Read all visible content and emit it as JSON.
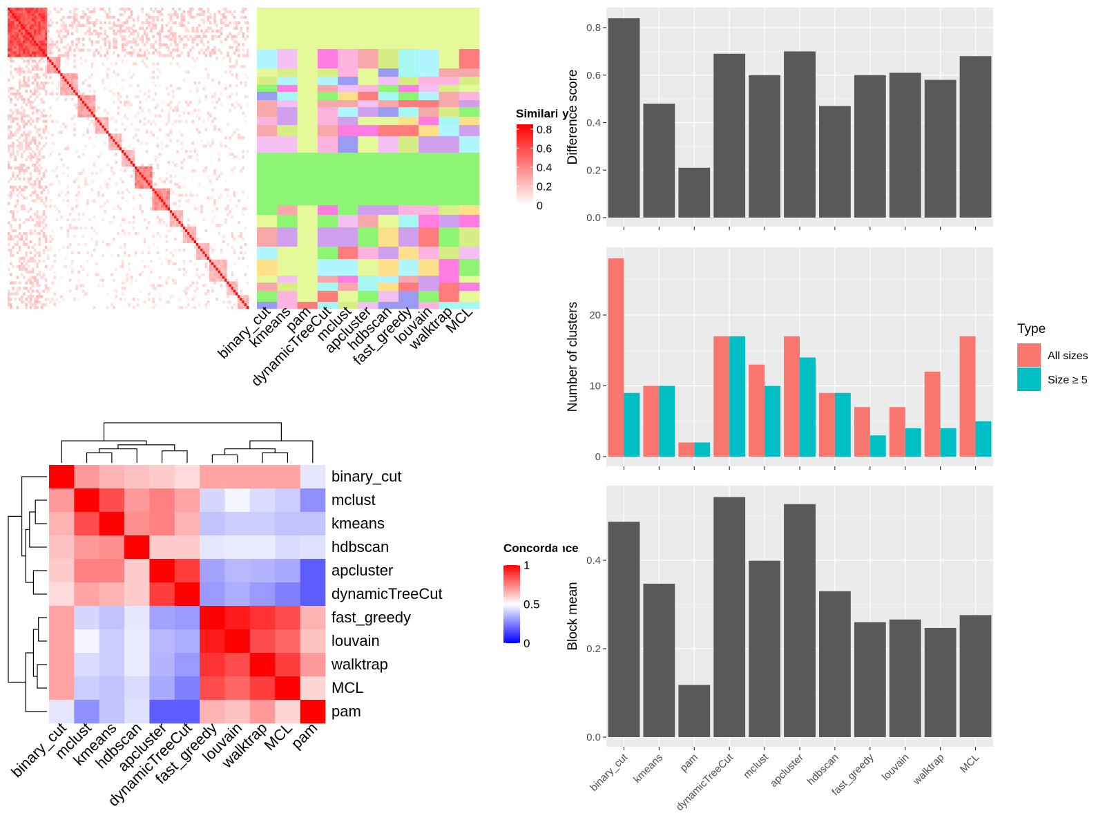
{
  "methods_order_bar": [
    "binary_cut",
    "kmeans",
    "pam",
    "dynamicTreeCut",
    "mclust",
    "apcluster",
    "hdbscan",
    "fast_greedy",
    "louvain",
    "walktrap",
    "MCL"
  ],
  "similarity_heatmap": {
    "legend_title": "Similarity",
    "legend_ticks": [
      "0.8",
      "0.6",
      "0.4",
      "0.2",
      "0"
    ],
    "column_labels": [
      "binary_cut",
      "kmeans",
      "pam",
      "dynamicTreeCut",
      "mclust",
      "apcluster",
      "hdbscan",
      "fast_greedy",
      "louvain",
      "walktrap",
      "MCL"
    ]
  },
  "concordance_heatmap": {
    "legend_title": "Concordance",
    "legend_ticks": [
      "1",
      "0.5",
      "0"
    ],
    "methods": [
      "binary_cut",
      "mclust",
      "kmeans",
      "hdbscan",
      "apcluster",
      "dynamicTreeCut",
      "fast_greedy",
      "louvain",
      "walktrap",
      "MCL",
      "pam"
    ]
  },
  "legend": {
    "title": "Type",
    "items": [
      {
        "label": "All sizes",
        "color": "#F8766D"
      },
      {
        "label": "Size ≥ 5",
        "color": "#00BFC4"
      }
    ]
  },
  "chart_data": [
    {
      "type": "heatmap",
      "title": "",
      "rows": [
        "binary_cut",
        "mclust",
        "kmeans",
        "hdbscan",
        "apcluster",
        "dynamicTreeCut",
        "fast_greedy",
        "louvain",
        "walktrap",
        "MCL",
        "pam"
      ],
      "columns": [
        "binary_cut",
        "mclust",
        "kmeans",
        "hdbscan",
        "apcluster",
        "dynamicTreeCut",
        "fast_greedy",
        "louvain",
        "walktrap",
        "MCL",
        "pam"
      ],
      "values": [
        [
          1.0,
          0.7,
          0.65,
          0.62,
          0.6,
          0.57,
          0.68,
          0.68,
          0.68,
          0.68,
          0.45
        ],
        [
          0.7,
          1.0,
          0.85,
          0.7,
          0.75,
          0.68,
          0.42,
          0.48,
          0.43,
          0.4,
          0.28
        ],
        [
          0.65,
          0.85,
          1.0,
          0.72,
          0.75,
          0.65,
          0.38,
          0.4,
          0.4,
          0.38,
          0.38
        ],
        [
          0.62,
          0.7,
          0.72,
          1.0,
          0.6,
          0.6,
          0.45,
          0.46,
          0.46,
          0.43,
          0.44
        ],
        [
          0.6,
          0.75,
          0.75,
          0.6,
          1.0,
          0.88,
          0.32,
          0.36,
          0.35,
          0.33,
          0.18
        ],
        [
          0.57,
          0.68,
          0.65,
          0.6,
          0.88,
          1.0,
          0.3,
          0.34,
          0.3,
          0.25,
          0.18
        ],
        [
          0.68,
          0.42,
          0.38,
          0.45,
          0.32,
          0.3,
          1.0,
          0.95,
          0.9,
          0.85,
          0.65
        ],
        [
          0.68,
          0.48,
          0.4,
          0.46,
          0.36,
          0.34,
          0.95,
          1.0,
          0.85,
          0.8,
          0.62
        ],
        [
          0.68,
          0.43,
          0.4,
          0.46,
          0.35,
          0.3,
          0.9,
          0.85,
          1.0,
          0.88,
          0.7
        ],
        [
          0.68,
          0.4,
          0.38,
          0.43,
          0.33,
          0.25,
          0.85,
          0.8,
          0.88,
          1.0,
          0.58
        ],
        [
          0.45,
          0.28,
          0.38,
          0.44,
          0.18,
          0.18,
          0.65,
          0.62,
          0.7,
          0.58,
          1.0
        ]
      ],
      "legend_title": "Concordance",
      "color_scale": {
        "low": "#0000FF",
        "mid": "#FFFFFF",
        "high": "#FF0000",
        "range": [
          0,
          1
        ]
      }
    },
    {
      "type": "bar",
      "title": "",
      "xlabel": "",
      "ylabel": "Difference score",
      "categories": [
        "binary_cut",
        "kmeans",
        "pam",
        "dynamicTreeCut",
        "mclust",
        "apcluster",
        "hdbscan",
        "fast_greedy",
        "louvain",
        "walktrap",
        "MCL"
      ],
      "values": [
        0.84,
        0.48,
        0.21,
        0.69,
        0.6,
        0.7,
        0.47,
        0.6,
        0.61,
        0.58,
        0.68
      ],
      "ylim": [
        0,
        0.88
      ],
      "yticks": [
        "0.0",
        "0.2",
        "0.4",
        "0.6",
        "0.8"
      ],
      "grid": true
    },
    {
      "type": "bar",
      "title": "",
      "xlabel": "",
      "ylabel": "Number of clusters",
      "categories": [
        "binary_cut",
        "kmeans",
        "pam",
        "dynamicTreeCut",
        "mclust",
        "apcluster",
        "hdbscan",
        "fast_greedy",
        "louvain",
        "walktrap",
        "MCL"
      ],
      "series": [
        {
          "name": "All sizes",
          "values": [
            28,
            10,
            2,
            17,
            13,
            17,
            9,
            7,
            7,
            12,
            17
          ]
        },
        {
          "name": "Size ≥ 5",
          "values": [
            9,
            10,
            2,
            17,
            10,
            14,
            9,
            3,
            4,
            4,
            5
          ]
        }
      ],
      "ylim": [
        0,
        29.4
      ],
      "yticks": [
        "0",
        "10",
        "20"
      ],
      "grid": true,
      "legend_position": "right"
    },
    {
      "type": "bar",
      "title": "",
      "xlabel": "",
      "ylabel": "Block mean",
      "categories": [
        "binary_cut",
        "kmeans",
        "pam",
        "dynamicTreeCut",
        "mclust",
        "apcluster",
        "hdbscan",
        "fast_greedy",
        "louvain",
        "walktrap",
        "MCL"
      ],
      "values": [
        0.487,
        0.347,
        0.118,
        0.543,
        0.399,
        0.527,
        0.33,
        0.26,
        0.266,
        0.247,
        0.276
      ],
      "ylim": [
        0,
        0.57
      ],
      "yticks": [
        "0.0",
        "0.2",
        "0.4"
      ],
      "grid": true
    }
  ]
}
